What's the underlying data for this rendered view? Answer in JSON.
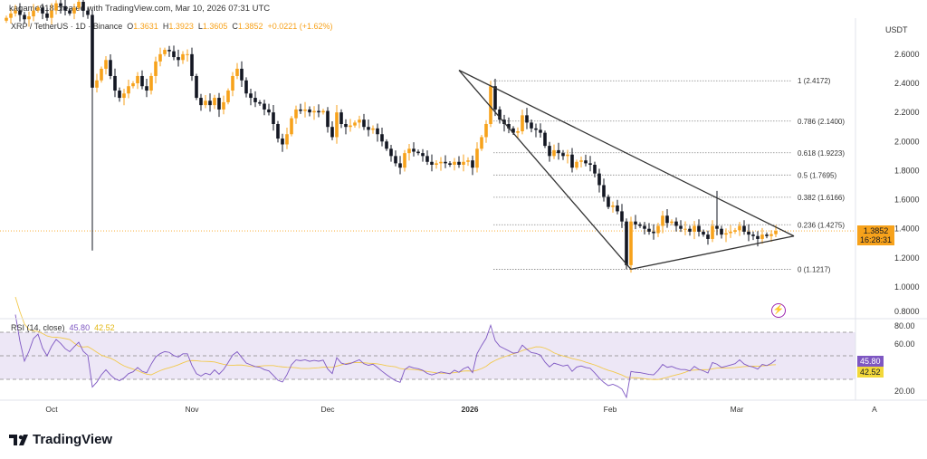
{
  "header": {
    "credit": "kagame918 created with TradingView.com, Mar 10, 2026 07:31 UTC"
  },
  "legend": {
    "symbol": "XRP / TetherUS · 1D · Binance",
    "o_label": "O",
    "o": "1.3631",
    "h_label": "H",
    "h": "1.3923",
    "l_label": "L",
    "l": "1.3605",
    "c_label": "C",
    "c": "1.3852",
    "change": "+0.0221 (+1.62%)"
  },
  "price_axis": {
    "currency": "USDT",
    "ticks": [
      "2.6000",
      "2.4000",
      "2.2000",
      "2.0000",
      "1.8000",
      "1.6000",
      "1.4000",
      "1.2000",
      "1.0000",
      "0.8000"
    ],
    "last_price": "1.3852",
    "countdown": "16:28:31"
  },
  "rsi": {
    "label": "RSI (14, close)",
    "value": "45.80",
    "ma_value": "42.52",
    "ticks": [
      "80.00",
      "60.00",
      "20.00"
    ]
  },
  "time_axis": {
    "labels": [
      "Oct",
      "Nov",
      "Dec",
      "2026",
      "Feb",
      "Mar",
      "A"
    ]
  },
  "colors": {
    "up": "#f7a21b",
    "down": "#131722",
    "rsi": "#7e57c2",
    "rsi_ma": "#f2c94c",
    "band": "#ede7f6"
  },
  "chart_data": {
    "type": "candlestick",
    "title": "XRP / TetherUS · 1D · Binance",
    "start_date": "2025-09-21",
    "ylim": [
      0.8,
      2.6
    ],
    "closes": [
      2.85,
      2.88,
      2.9,
      2.87,
      2.84,
      2.86,
      2.9,
      2.92,
      2.88,
      2.85,
      2.9,
      2.95,
      2.93,
      2.9,
      2.88,
      2.92,
      2.96,
      2.9,
      2.87,
      2.37,
      2.42,
      2.5,
      2.56,
      2.45,
      2.35,
      2.3,
      2.33,
      2.38,
      2.4,
      2.45,
      2.38,
      2.35,
      2.45,
      2.55,
      2.6,
      2.63,
      2.62,
      2.58,
      2.56,
      2.6,
      2.6,
      2.45,
      2.3,
      2.25,
      2.28,
      2.25,
      2.3,
      2.22,
      2.27,
      2.35,
      2.45,
      2.5,
      2.42,
      2.33,
      2.3,
      2.27,
      2.26,
      2.22,
      2.2,
      2.12,
      2.02,
      1.98,
      2.05,
      2.16,
      2.22,
      2.21,
      2.22,
      2.2,
      2.21,
      2.2,
      2.21,
      2.1,
      2.03,
      2.2,
      2.12,
      2.1,
      2.11,
      2.13,
      2.15,
      2.1,
      2.08,
      2.09,
      2.05,
      2.0,
      1.95,
      1.9,
      1.85,
      1.82,
      1.92,
      1.95,
      1.93,
      1.92,
      1.9,
      1.86,
      1.84,
      1.85,
      1.86,
      1.85,
      1.84,
      1.86,
      1.84,
      1.86,
      1.87,
      1.82,
      1.95,
      2.03,
      2.12,
      2.38,
      2.22,
      2.15,
      2.12,
      2.09,
      2.06,
      2.07,
      2.18,
      2.13,
      2.09,
      2.08,
      2.06,
      1.97,
      1.9,
      1.94,
      1.92,
      1.9,
      1.91,
      1.82,
      1.86,
      1.87,
      1.85,
      1.84,
      1.78,
      1.7,
      1.62,
      1.55,
      1.56,
      1.52,
      1.45,
      1.15,
      1.45,
      1.43,
      1.42,
      1.4,
      1.38,
      1.37,
      1.42,
      1.49,
      1.44,
      1.45,
      1.42,
      1.4,
      1.4,
      1.38,
      1.42,
      1.38,
      1.36,
      1.33,
      1.42,
      1.4,
      1.36,
      1.37,
      1.38,
      1.39,
      1.42,
      1.38,
      1.36,
      1.35,
      1.33,
      1.36,
      1.35,
      1.3631,
      1.3852
    ],
    "wick_extremes": [
      {
        "date": "2025-10-10",
        "low": 1.25
      },
      {
        "date": "2026-02-05",
        "low": 1.1217
      },
      {
        "date": "2026-01-06",
        "high": 2.4172
      },
      {
        "date": "2026-02-25",
        "high": 1.66
      }
    ],
    "fibonacci": [
      {
        "ratio": "1",
        "price": 2.4172,
        "label": "1 (2.4172)"
      },
      {
        "ratio": "0.786",
        "price": 2.14,
        "label": "0.786 (2.1400)"
      },
      {
        "ratio": "0.618",
        "price": 1.9223,
        "label": "0.618 (1.9223)"
      },
      {
        "ratio": "0.5",
        "price": 1.7695,
        "label": "0.5 (1.7695)"
      },
      {
        "ratio": "0.382",
        "price": 1.6166,
        "label": "0.382 (1.6166)"
      },
      {
        "ratio": "0.236",
        "price": 1.4275,
        "label": "0.236 (1.4275)"
      },
      {
        "ratio": "0",
        "price": 1.1217,
        "label": "0 (1.1217)"
      }
    ],
    "triangle": [
      {
        "date": "2025-12-30",
        "price": 2.49
      },
      {
        "date": "2026-02-06",
        "price": 1.1217
      },
      {
        "date": "2026-03-14",
        "price": 1.35
      }
    ],
    "rsi_ylim": [
      10,
      85
    ]
  }
}
